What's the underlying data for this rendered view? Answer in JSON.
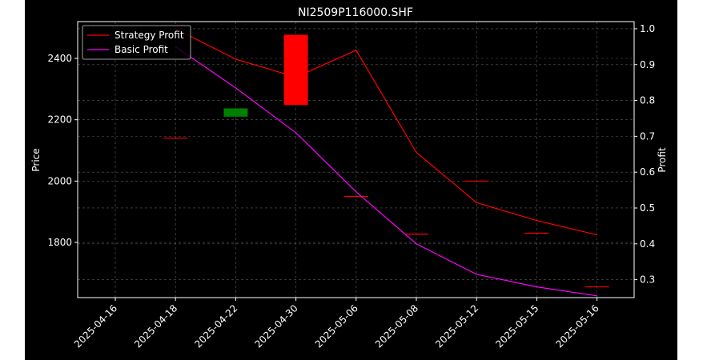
{
  "chart_data": {
    "type": "candlestick-line",
    "title": "NI2509P116000.SHF",
    "ylabel_left": "Price",
    "ylabel_right": "Profit",
    "categories": [
      "2025-04-16",
      "2025-04-18",
      "2025-04-22",
      "2025-04-30",
      "2025-05-06",
      "2025-05-08",
      "2025-05-12",
      "2025-05-15",
      "2025-05-16"
    ],
    "ylim_left": [
      1620,
      2520
    ],
    "ylim_right": [
      0.25,
      1.02
    ],
    "yticks_left": [
      1800,
      2000,
      2200,
      2400
    ],
    "yticks_right": [
      "0.3",
      "0.4",
      "0.5",
      "0.6",
      "0.7",
      "0.8",
      "0.9",
      "1.0"
    ],
    "candles": [
      {
        "date": "2025-04-18",
        "open": 2140,
        "close": 2140,
        "color": "#ff0000"
      },
      {
        "date": "2025-04-22",
        "open": 2210,
        "close": 2237,
        "color": "#008000"
      },
      {
        "date": "2025-04-30",
        "open": 2477,
        "close": 2248,
        "color": "#ff0000"
      },
      {
        "date": "2025-05-06",
        "open": 1950,
        "close": 1950,
        "color": "#ff0000"
      },
      {
        "date": "2025-05-08",
        "open": 1827,
        "close": 1827,
        "color": "#ff0000"
      },
      {
        "date": "2025-05-12",
        "open": 2000,
        "close": 2000,
        "color": "#ff0000"
      },
      {
        "date": "2025-05-15",
        "open": 1830,
        "close": 1830,
        "color": "#ff0000"
      },
      {
        "date": "2025-05-16",
        "open": 1655,
        "close": 1655,
        "color": "#ff0000"
      }
    ],
    "series": [
      {
        "name": "Strategy Profit",
        "color": "#ff0000",
        "axis": "right",
        "values": [
          null,
          1.0,
          0.915,
          0.865,
          0.94,
          0.655,
          0.515,
          0.465,
          0.425
        ]
      },
      {
        "name": "Basic Profit",
        "color": "#ff00ff",
        "axis": "right",
        "values": [
          null,
          0.95,
          0.835,
          0.71,
          0.545,
          0.4,
          0.315,
          0.28,
          0.255
        ]
      }
    ],
    "legend": "top-left",
    "grid": true,
    "colors": {
      "background": "#000000",
      "foreground": "#ffffff",
      "grid": "#808080"
    }
  }
}
